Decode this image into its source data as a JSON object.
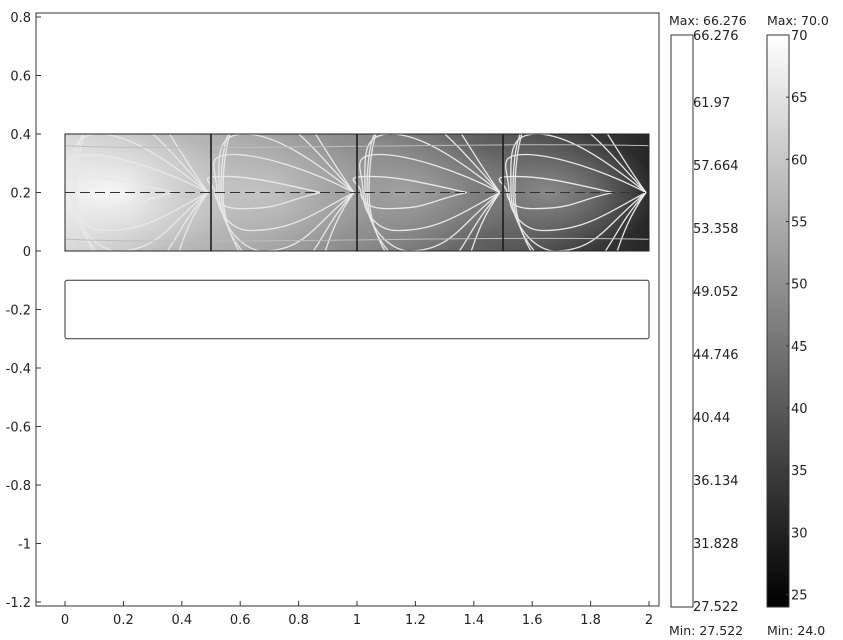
{
  "chart_data": {
    "type": "heatmap",
    "subtype": "2D surface plot with contour lines and two color legends",
    "colormap": "gray",
    "grid": false,
    "xlim": [
      -0.1,
      2.05
    ],
    "ylim": [
      -1.2,
      0.85
    ],
    "x_ticks": [
      "0",
      "0.2",
      "0.4",
      "0.6",
      "0.8",
      "1",
      "1.2",
      "1.4",
      "1.6",
      "1.8",
      "2"
    ],
    "y_ticks": [
      "0.8",
      "0.6",
      "0.4",
      "0.2",
      "0",
      "-0.2",
      "-0.4",
      "-0.6",
      "-0.8",
      "-1",
      "-1.2"
    ],
    "surface": {
      "x_range": [
        0,
        2
      ],
      "y_range": [
        0,
        0.4
      ],
      "divider_x": [
        0.5,
        1.0,
        1.5
      ],
      "centerline_y": 0.2,
      "hot_spot_centers_x": [
        0.1,
        0.6,
        1.1,
        1.6
      ],
      "value_range": [
        27.522,
        66.276
      ]
    },
    "empty_domain": {
      "x_range": [
        0,
        2
      ],
      "y_range": [
        -0.3,
        -0.1
      ]
    },
    "contour_levels": [
      30,
      35,
      40,
      45,
      50,
      55,
      60,
      65
    ],
    "surface_legend": {
      "max_label": "Max: 66.276",
      "min_label": "Min: 27.522",
      "ticks": [
        "66.276",
        "61.97",
        "57.664",
        "53.358",
        "49.052",
        "44.746",
        "40.44",
        "36.134",
        "31.828",
        "27.522"
      ]
    },
    "contour_legend": {
      "max_label": "Max: 70.0",
      "min_label": "Min: 24.0",
      "range": [
        24,
        70
      ],
      "ticks": [
        "70",
        "65",
        "60",
        "55",
        "50",
        "45",
        "40",
        "35",
        "30",
        "25"
      ]
    }
  }
}
